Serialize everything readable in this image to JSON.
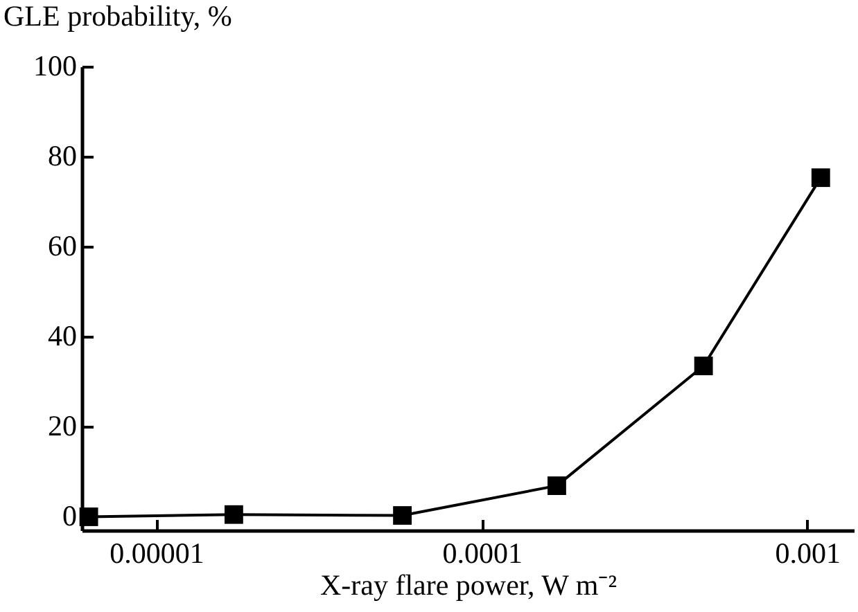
{
  "chart_data": {
    "type": "line",
    "xlabel": "X-ray flare power, W m⁻²",
    "ylabel": "GLE probability, %",
    "x": [
      6.2e-06,
      1.73e-05,
      5.7e-05,
      0.00017,
      0.00048,
      0.0011
    ],
    "series": [
      {
        "color": "#000000",
        "values": [
          0,
          0.5,
          0.3,
          6.9,
          33.5,
          75.3
        ]
      }
    ],
    "log": "x",
    "xlim": [
      5.9e-06,
      0.00139
    ],
    "xticks": [
      {
        "value": 1e-05,
        "label": "0.00001"
      },
      {
        "value": 0.0001,
        "label": "0.0001"
      },
      {
        "value": 0.001,
        "label": "0.001"
      }
    ],
    "ylim": [
      -3,
      100
    ],
    "yticks": [
      0,
      20,
      40,
      60,
      80,
      100
    ],
    "grid": false,
    "marker": "square",
    "line_style": "solid"
  }
}
